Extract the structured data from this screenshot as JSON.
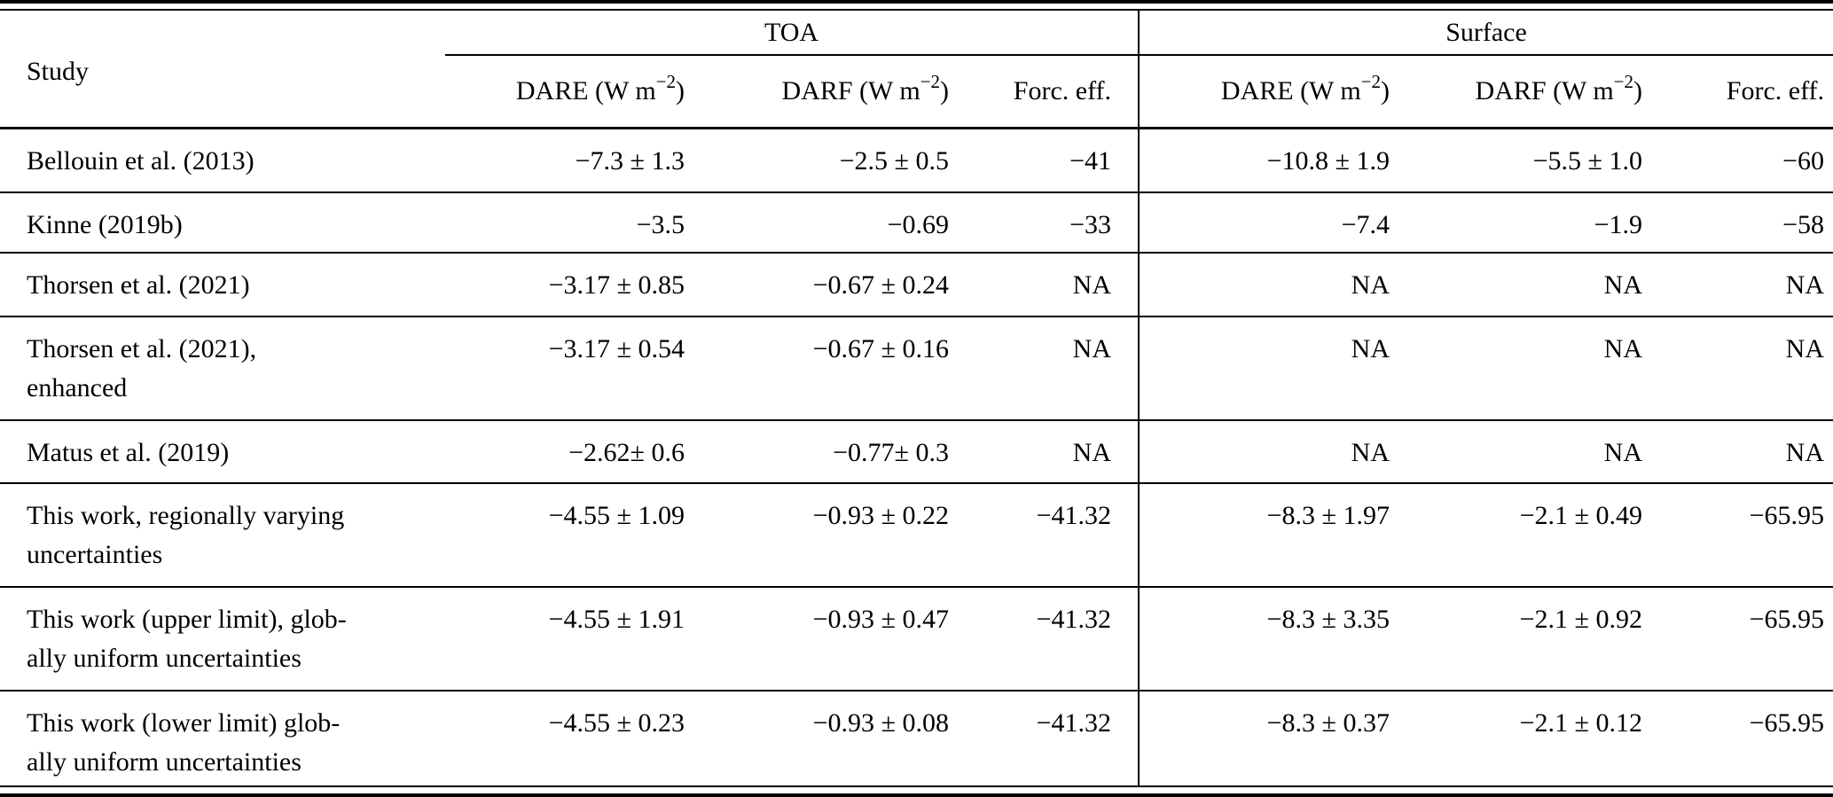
{
  "table": {
    "header": {
      "study": "Study",
      "toa_group": "TOA",
      "surface_group": "Surface",
      "toa_cols": [
        {
          "pre": "DARE (W m",
          "sup": "−2",
          "post": ")"
        },
        {
          "pre": "DARF (W m",
          "sup": "−2",
          "post": ")"
        },
        {
          "pre": "Forc. eff.",
          "sup": "",
          "post": ""
        }
      ],
      "surface_cols": [
        {
          "pre": "DARE (W m",
          "sup": "−2",
          "post": ")"
        },
        {
          "pre": "DARF (W m",
          "sup": "−2",
          "post": ")"
        },
        {
          "pre": "Forc. eff.",
          "sup": "",
          "post": ""
        }
      ]
    },
    "rows": [
      {
        "study": "Bellouin et al. (2013)",
        "toa_dare": "−7.3 ± 1.3",
        "toa_darf": "−2.5 ± 0.5",
        "toa_fe": "−41",
        "sfc_dare": "−10.8 ± 1.9",
        "sfc_darf": "−5.5 ± 1.0",
        "sfc_fe": "−60"
      },
      {
        "study": "Kinne (2019b)",
        "toa_dare": "−3.5",
        "toa_darf": "−0.69",
        "toa_fe": "−33",
        "sfc_dare": "−7.4",
        "sfc_darf": "−1.9",
        "sfc_fe": "−58"
      },
      {
        "study": "Thorsen et al. (2021)",
        "toa_dare": "−3.17 ± 0.85",
        "toa_darf": "−0.67 ± 0.24",
        "toa_fe": "NA",
        "sfc_dare": "NA",
        "sfc_darf": "NA",
        "sfc_fe": "NA"
      },
      {
        "study": "Thorsen et al. (2021),\nenhanced",
        "toa_dare": "−3.17 ± 0.54",
        "toa_darf": "−0.67 ± 0.16",
        "toa_fe": "NA",
        "sfc_dare": "NA",
        "sfc_darf": "NA",
        "sfc_fe": "NA"
      },
      {
        "study": "Matus et al. (2019)",
        "toa_dare": "−2.62± 0.6",
        "toa_darf": "−0.77± 0.3",
        "toa_fe": "NA",
        "sfc_dare": "NA",
        "sfc_darf": "NA",
        "sfc_fe": "NA"
      },
      {
        "study": "This work, regionally varying\nuncertainties",
        "toa_dare": "−4.55 ± 1.09",
        "toa_darf": "−0.93 ± 0.22",
        "toa_fe": "−41.32",
        "sfc_dare": "−8.3 ± 1.97",
        "sfc_darf": "−2.1 ± 0.49",
        "sfc_fe": "−65.95"
      },
      {
        "study": "This work (upper limit), glob-\nally uniform uncertainties",
        "toa_dare": "−4.55 ± 1.91",
        "toa_darf": "−0.93 ± 0.47",
        "toa_fe": "−41.32",
        "sfc_dare": "−8.3 ± 3.35",
        "sfc_darf": "−2.1 ± 0.92",
        "sfc_fe": "−65.95"
      },
      {
        "study": "This work (lower limit) glob-\nally uniform uncertainties",
        "toa_dare": "−4.55 ± 0.23",
        "toa_darf": "−0.93 ± 0.08",
        "toa_fe": "−41.32",
        "sfc_dare": "−8.3 ± 0.37",
        "sfc_darf": "−2.1 ± 0.12",
        "sfc_fe": "−65.95"
      }
    ]
  },
  "colors": {
    "text": "#000000",
    "rule": "#000000",
    "background": "#ffffff"
  }
}
